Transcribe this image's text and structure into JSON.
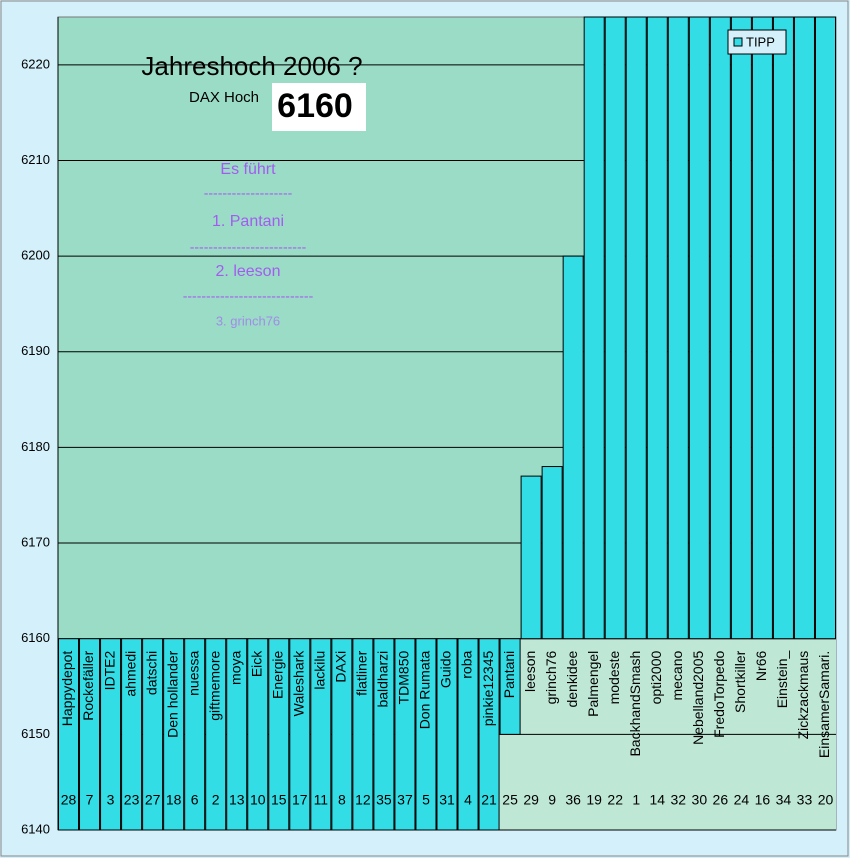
{
  "chart_data": {
    "type": "bar",
    "title": "Jahreshoch 2006 ?",
    "annotations": {
      "dax_label": "DAX Hoch",
      "dax_value": "6160",
      "leaders": [
        "Es führt",
        "-------------------",
        "1.    Pantani",
        "-------------------------",
        "2. leeson",
        "----------------------------",
        "3. grinch76"
      ]
    },
    "categories": [
      "Happydepot",
      "Rockefäller",
      "IDTE2",
      "ahmedi",
      "datschi",
      "Den hollander",
      "nuessa",
      "giftmemore",
      "moya",
      "Eick",
      "Energie",
      "Waleshark",
      "lackilu",
      "DAXi",
      "flatliner",
      "baldharzi",
      "TDM850",
      "Don Rumata",
      "Guido",
      "roba",
      "pinkie12345",
      "Pantani",
      "leeson",
      "grinch76",
      "denkidee",
      "Palmengel",
      "modeste",
      "BackhandSmash",
      "opti2000",
      "mecano",
      "Nebelland2005",
      "FredoTorpedo",
      "Shortkiller",
      "Nr66",
      "Einstein_",
      "Zickzackmaus",
      "EinsamerSamari."
    ],
    "numbers": [
      "28",
      "7",
      "3",
      "23",
      "27",
      "18",
      "6",
      "2",
      "13",
      "10",
      "15",
      "17",
      "11",
      "8",
      "12",
      "35",
      "37",
      "5",
      "31",
      "4",
      "21",
      "25",
      "29",
      "9",
      "36",
      "19",
      "22",
      "1",
      "14",
      "32",
      "30",
      "26",
      "24",
      "16",
      "34",
      "33",
      "20"
    ],
    "series": [
      {
        "name": "TIPP",
        "color": "#33dde6",
        "values": [
          6140,
          6140,
          6140,
          6140,
          6140,
          6140,
          6140,
          6140,
          6140,
          6140,
          6140,
          6140,
          6140,
          6140,
          6140,
          6140,
          6140,
          6140,
          6140,
          6140,
          6140,
          6150,
          6177,
          6178,
          6200,
          6225,
          6225,
          6225,
          6225,
          6225,
          6225,
          6225,
          6225,
          6225,
          6225,
          6225,
          6225
        ]
      }
    ],
    "ylim": [
      6140,
      6225
    ],
    "yticks": [
      6140,
      6150,
      6160,
      6170,
      6180,
      6190,
      6200,
      6210,
      6220
    ],
    "baseline": 6160,
    "grid": true,
    "legend": "top-right"
  }
}
